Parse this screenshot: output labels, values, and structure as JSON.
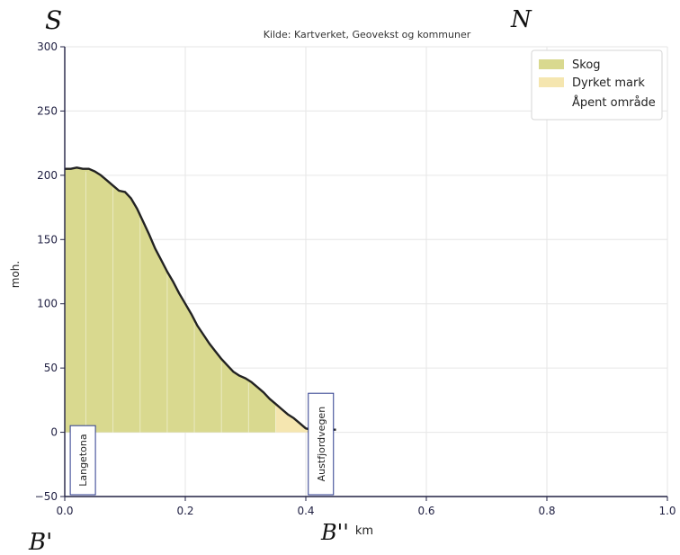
{
  "chart_data": {
    "type": "area",
    "title": "Kilde: Kartverket, Geovekst og kommuner",
    "xlabel": "km",
    "ylabel": "moh.",
    "xlim": [
      0.0,
      1.0
    ],
    "ylim": [
      -50,
      300
    ],
    "xticks": [
      0.0,
      0.2,
      0.4,
      0.6,
      0.8,
      1.0
    ],
    "xtick_labels": [
      "0.0",
      "0.2",
      "0.4",
      "0.6",
      "0.8",
      "1.0"
    ],
    "yticks": [
      -50,
      0,
      50,
      100,
      150,
      200,
      250,
      300
    ],
    "ytick_labels": [
      "−50",
      "0",
      "50",
      "100",
      "150",
      "200",
      "250",
      "300"
    ],
    "grid": true,
    "legend_position": "top-right",
    "legend": [
      {
        "label": "Skog",
        "color": "#d9d98f"
      },
      {
        "label": "Dyrket mark",
        "color": "#f5e6b0"
      },
      {
        "label": "Åpent område",
        "color": "#ffffff"
      }
    ],
    "profile": {
      "x": [
        0.0,
        0.01,
        0.02,
        0.03,
        0.04,
        0.05,
        0.06,
        0.07,
        0.08,
        0.09,
        0.1,
        0.11,
        0.12,
        0.13,
        0.14,
        0.15,
        0.16,
        0.17,
        0.18,
        0.19,
        0.2,
        0.21,
        0.22,
        0.23,
        0.24,
        0.25,
        0.26,
        0.27,
        0.28,
        0.29,
        0.3,
        0.31,
        0.32,
        0.33,
        0.34,
        0.35,
        0.36,
        0.37,
        0.38,
        0.39,
        0.4,
        0.41,
        0.42,
        0.43,
        0.44,
        0.45
      ],
      "y": [
        205,
        205,
        206,
        205,
        205,
        203,
        200,
        196,
        192,
        188,
        187,
        182,
        174,
        164,
        154,
        143,
        134,
        125,
        117,
        108,
        100,
        92,
        83,
        76,
        69,
        63,
        57,
        52,
        47,
        44,
        42,
        39,
        35,
        31,
        26,
        22,
        18,
        14,
        11,
        7,
        3,
        2,
        2,
        2,
        2,
        2
      ]
    },
    "landcover": [
      {
        "type": "Skog",
        "x_start": 0.0,
        "x_end": 0.35
      },
      {
        "type": "Dyrket mark",
        "x_start": 0.35,
        "x_end": 0.405
      }
    ],
    "markers": [
      {
        "label": "Langetona",
        "x": 0.03
      },
      {
        "label": "Austfjordvegen",
        "x": 0.425
      }
    ]
  },
  "annotations": {
    "top_left": "S",
    "top_right": "N",
    "bottom_left": "B'",
    "bottom_right": "B''"
  },
  "colors": {
    "skog": "#d9d98f",
    "dyrket": "#f5e6b0",
    "profile_line": "#222222",
    "axis": "#222244",
    "marker_box": "#2b3a8c"
  }
}
